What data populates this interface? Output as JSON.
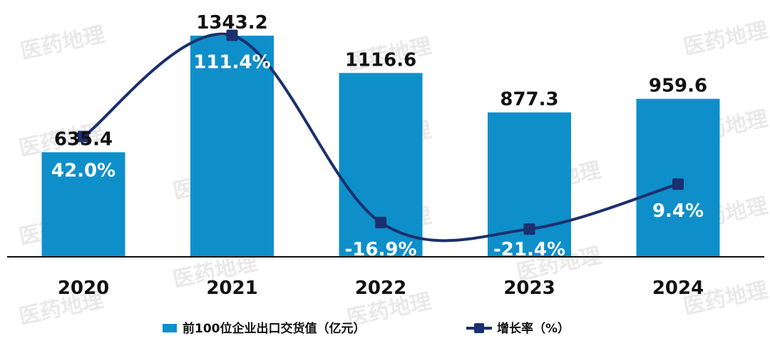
{
  "watermark": "医药地理",
  "chart_data": {
    "type": "bar",
    "categories": [
      "2020",
      "2021",
      "2022",
      "2023",
      "2024"
    ],
    "series": [
      {
        "name": "前100位企业出口交货值（亿元）",
        "type": "bar",
        "values": [
          635.4,
          1343.2,
          1116.6,
          877.3,
          959.6
        ],
        "labels": [
          "635.4",
          "1343.2",
          "1116.6",
          "877.3",
          "959.6"
        ],
        "color": "#0f8fc9"
      },
      {
        "name": "增长率（%）",
        "type": "line",
        "smooth": true,
        "values": [
          42.0,
          111.4,
          -16.9,
          -21.4,
          9.4
        ],
        "labels": [
          "42.0%",
          "111.4%",
          "-16.9%",
          "-21.4%",
          "9.4%"
        ],
        "color": "#1c2f6e"
      }
    ],
    "bar_ylim": [
      0,
      1400
    ],
    "line_ylim": [
      -60,
      130
    ],
    "legend_position": "bottom",
    "grid": false
  }
}
